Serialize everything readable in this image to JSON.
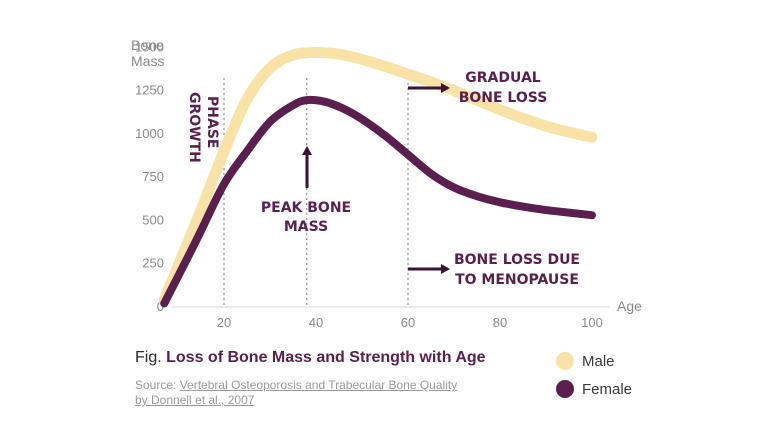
{
  "chart_data": {
    "type": "line",
    "title": "Loss of Bone Mass and Strength with Age",
    "title_prefix": "Fig.",
    "xlabel": "Age",
    "ylabel_lines": [
      "Bone",
      "Mass"
    ],
    "xlim": [
      5,
      105
    ],
    "ylim": [
      0,
      1600
    ],
    "xticks": [
      20,
      40,
      60,
      80,
      100
    ],
    "yticks": [
      0,
      250,
      500,
      750,
      1000,
      1250,
      1500
    ],
    "reference_lines_x": [
      20,
      38,
      60
    ],
    "series": [
      {
        "name": "Male",
        "color": "#f9e2a6",
        "points": [
          [
            7,
            40
          ],
          [
            15,
            560
          ],
          [
            20,
            900
          ],
          [
            25,
            1200
          ],
          [
            30,
            1380
          ],
          [
            35,
            1455
          ],
          [
            40,
            1470
          ],
          [
            45,
            1460
          ],
          [
            50,
            1430
          ],
          [
            55,
            1390
          ],
          [
            60,
            1345
          ],
          [
            65,
            1300
          ],
          [
            70,
            1250
          ],
          [
            75,
            1195
          ],
          [
            80,
            1140
          ],
          [
            85,
            1090
          ],
          [
            90,
            1045
          ],
          [
            95,
            1010
          ],
          [
            100,
            980
          ]
        ]
      },
      {
        "name": "Female",
        "color": "#5a1f4e",
        "points": [
          [
            7,
            20
          ],
          [
            12,
            280
          ],
          [
            15,
            440
          ],
          [
            20,
            710
          ],
          [
            25,
            900
          ],
          [
            30,
            1070
          ],
          [
            35,
            1165
          ],
          [
            38,
            1195
          ],
          [
            42,
            1185
          ],
          [
            46,
            1145
          ],
          [
            50,
            1085
          ],
          [
            55,
            990
          ],
          [
            60,
            880
          ],
          [
            65,
            770
          ],
          [
            70,
            690
          ],
          [
            75,
            640
          ],
          [
            80,
            605
          ],
          [
            85,
            580
          ],
          [
            90,
            560
          ],
          [
            95,
            545
          ],
          [
            100,
            530
          ]
        ]
      }
    ],
    "annotations": {
      "growth": [
        "GROWTH",
        "PHASE"
      ],
      "peak": [
        "PEAK BONE",
        "MASS"
      ],
      "gradual": [
        "GRADUAL",
        "BONE LOSS"
      ],
      "menopause": [
        "BONE LOSS DUE",
        "TO MENOPAUSE"
      ]
    }
  },
  "legend": {
    "male_label": "Male",
    "female_label": "Female",
    "male_color": "#f9e2a6",
    "female_color": "#5a1f4e"
  },
  "caption": {
    "prefix": "Fig.",
    "title": "Loss of Bone Mass and Strength with Age"
  },
  "source": {
    "label": "Source:",
    "link_line1": "Vertebral Osteoporosis and Trabecular Bone Quality",
    "link_line2": "by Donnell et al., 2007"
  }
}
